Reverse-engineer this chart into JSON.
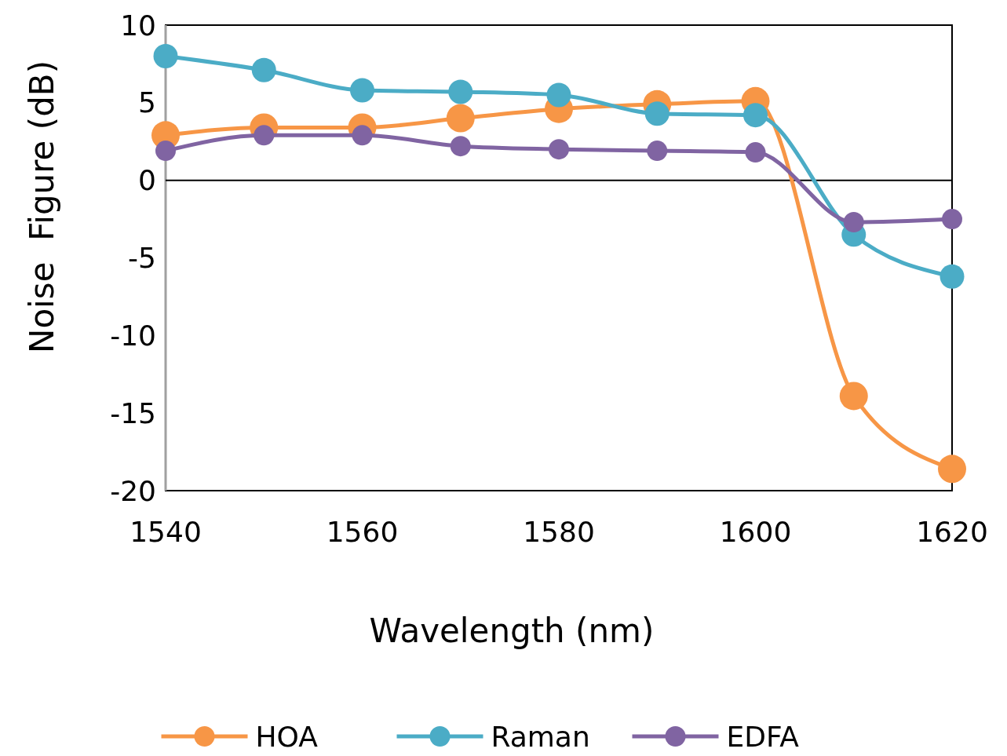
{
  "chart_data": {
    "type": "line",
    "xlabel": "Wavelength (nm)",
    "ylabel": "Noise  Figure (dB)",
    "x": [
      1540,
      1550,
      1560,
      1570,
      1580,
      1590,
      1600,
      1610,
      1620
    ],
    "xlim": [
      1540,
      1620
    ],
    "xticks": [
      1540,
      1560,
      1580,
      1600,
      1620
    ],
    "ylim": [
      -20,
      10
    ],
    "yticks": [
      -20,
      -15,
      -10,
      -5,
      0,
      5,
      10
    ],
    "marker": "circle",
    "line_style": "solid",
    "legend": "bottom",
    "ref_lines": [
      {
        "axis": "y",
        "value": 0,
        "color": "#000000"
      }
    ],
    "series": [
      {
        "name": "HOA",
        "color": "#f79646",
        "values": [
          2.9,
          3.4,
          3.4,
          4.0,
          4.6,
          4.9,
          5.1,
          -13.9,
          -18.6
        ]
      },
      {
        "name": "Raman",
        "color": "#4bacc6",
        "values": [
          8.0,
          7.1,
          5.8,
          5.7,
          5.5,
          4.3,
          4.2,
          -3.5,
          -6.2
        ]
      },
      {
        "name": "EDFA",
        "color": "#8064a2",
        "values": [
          1.9,
          2.9,
          2.9,
          2.2,
          2.0,
          1.9,
          1.8,
          -2.7,
          -2.5
        ]
      }
    ]
  }
}
